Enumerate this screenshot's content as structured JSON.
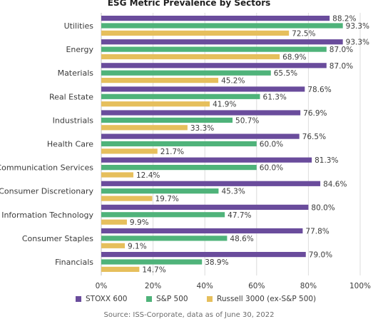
{
  "chart_data": {
    "type": "bar",
    "orientation": "horizontal",
    "title": "ESG Metric Prevalence by Sectors",
    "categories": [
      "Utilities",
      "Energy",
      "Materials",
      "Real Estate",
      "Industrials",
      "Health Care",
      "Communication Services",
      "Consumer Discretionary",
      "Information Technology",
      "Consumer Staples",
      "Financials"
    ],
    "series": [
      {
        "name": "STOXX 600",
        "color": "#6a4c9c",
        "values": [
          88.2,
          93.3,
          87.0,
          78.6,
          76.9,
          76.5,
          81.3,
          84.6,
          80.0,
          77.8,
          79.0
        ]
      },
      {
        "name": "S&P 500",
        "color": "#4fb37a",
        "values": [
          93.3,
          87.0,
          65.5,
          61.3,
          50.7,
          60.0,
          60.0,
          45.3,
          47.7,
          48.6,
          38.9
        ]
      },
      {
        "name": "Russell 3000 (ex-S&P 500)",
        "color": "#e6bf5c",
        "values": [
          72.5,
          68.9,
          45.2,
          41.9,
          33.3,
          21.7,
          12.4,
          19.7,
          9.9,
          9.1,
          14.7
        ]
      }
    ],
    "value_labels": [
      [
        "88.2%",
        "93.3%",
        "87.0%",
        "78.6%",
        "76.9%",
        "76.5%",
        "81.3%",
        "84.6%",
        "80.0%",
        "77.8%",
        "79.0%"
      ],
      [
        "93.3%",
        "87.0%",
        "65.5%",
        "61.3%",
        "50.7%",
        "60.0%",
        "60.0%",
        "45.3%",
        "47.7%",
        "48.6%",
        "38.9%"
      ],
      [
        "72.5%",
        "68.9%",
        "45.2%",
        "41.9%",
        "33.3%",
        "21.7%",
        "12.4%",
        "19.7%",
        "9.9%",
        "9.1%",
        "14.7%"
      ]
    ],
    "xlim": [
      0,
      100
    ],
    "xticks": [
      "0%",
      "20%",
      "40%",
      "60%",
      "80%",
      "100%"
    ],
    "xlabel": "",
    "ylabel": "",
    "grid": true,
    "legend_position": "bottom"
  },
  "source_note": "Source: ISS-Corporate, data as of June 30, 2022"
}
